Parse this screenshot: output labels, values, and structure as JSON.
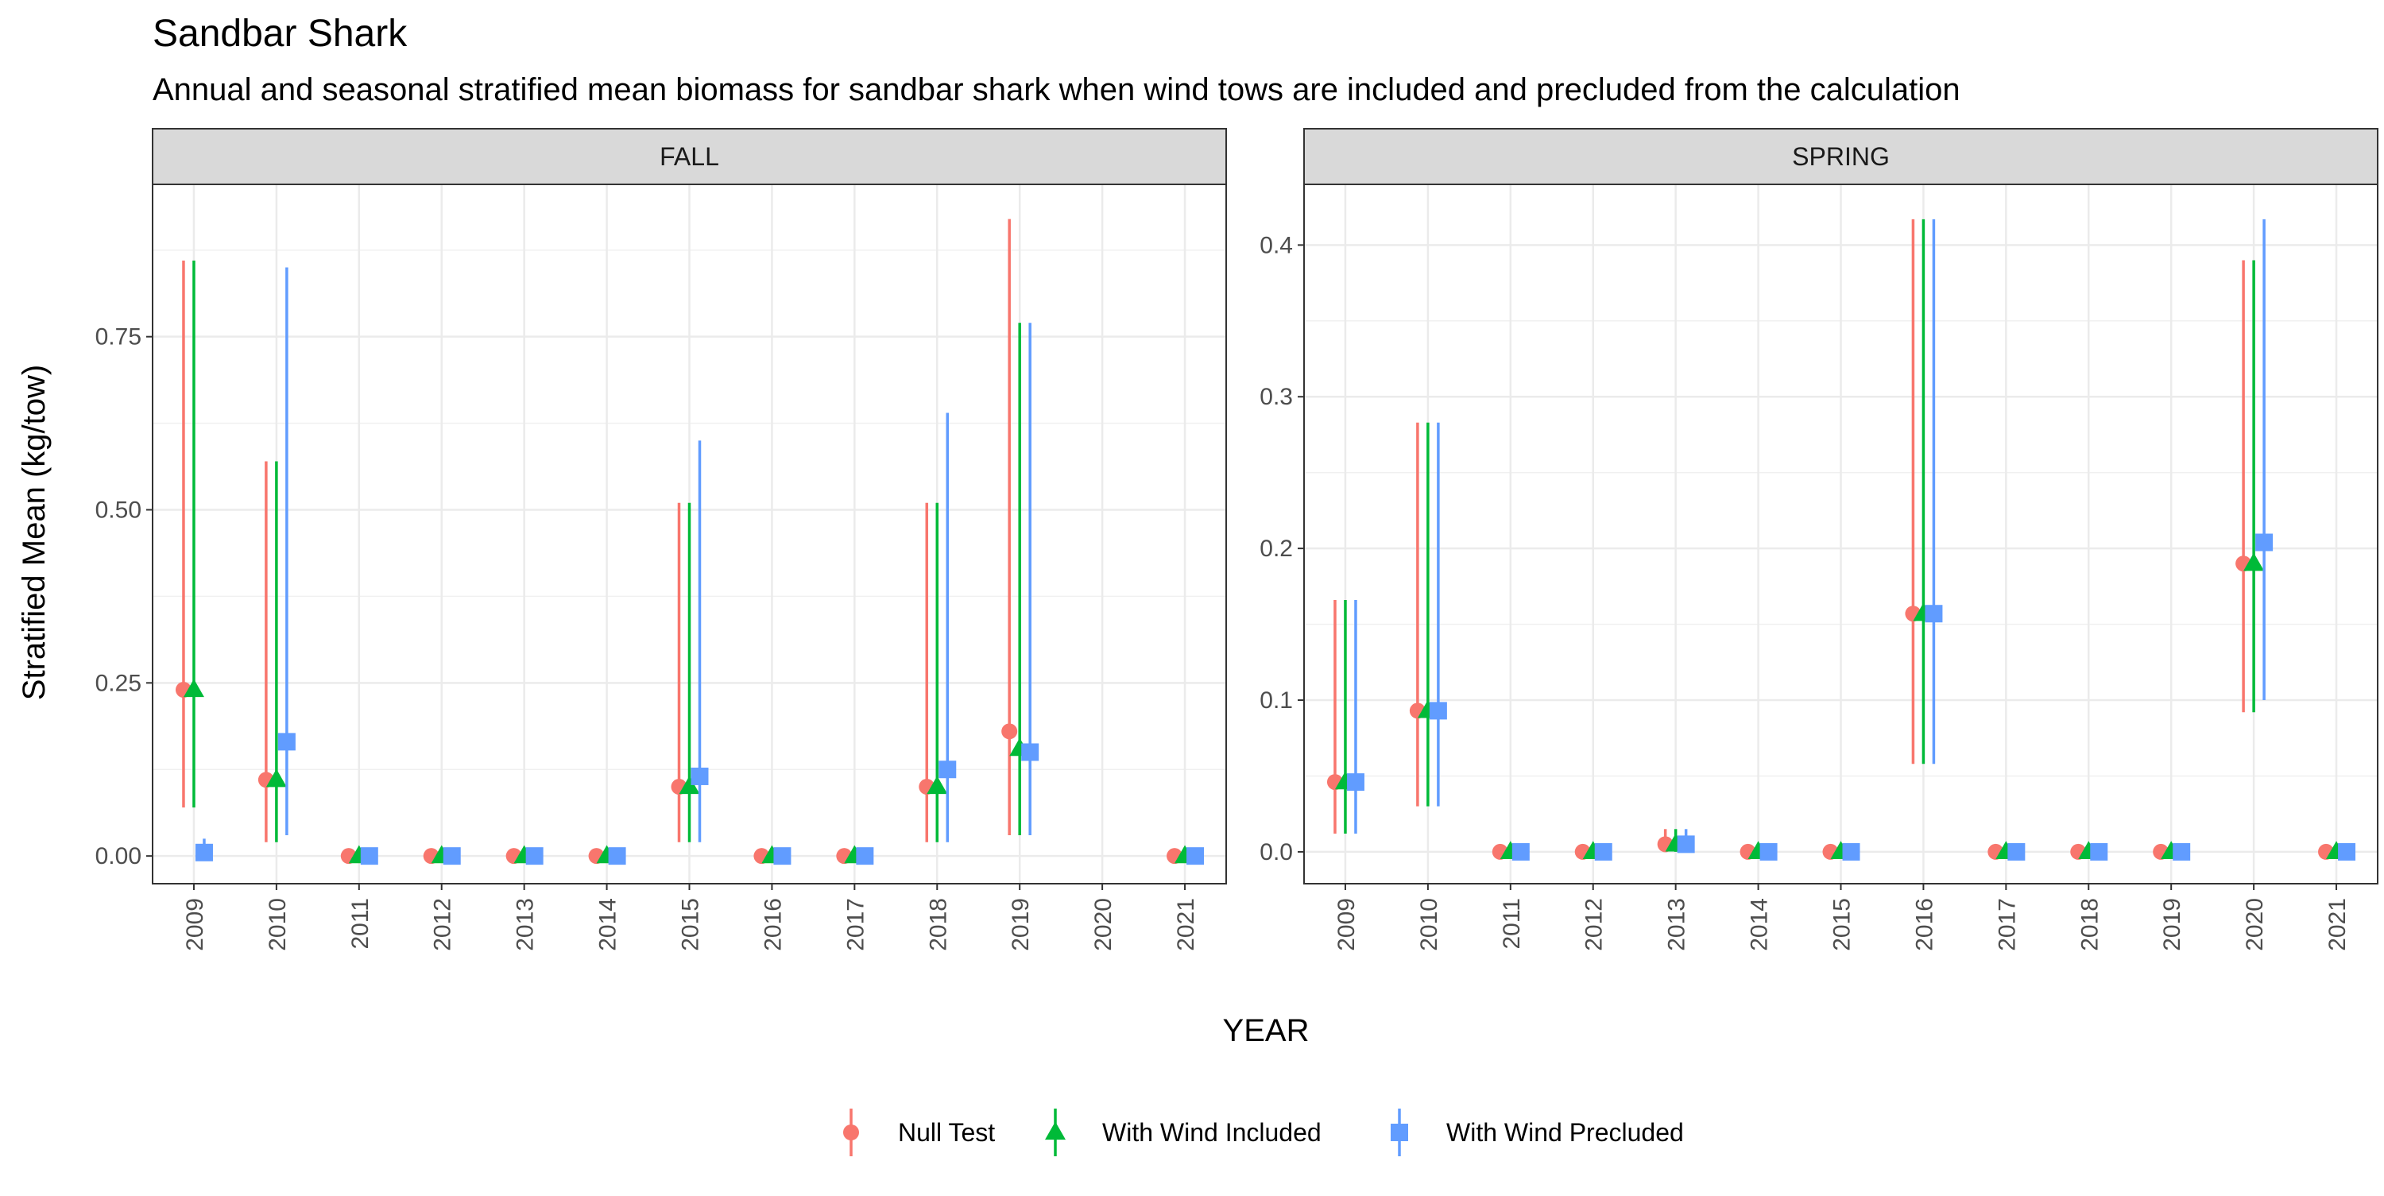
{
  "title": "Sandbar Shark",
  "subtitle": "Annual and seasonal stratified mean biomass for sandbar shark when wind tows are included and precluded from the calculation",
  "colors": {
    "null_test": "#F8766D",
    "with_wind_included": "#00BA38",
    "with_wind_precluded": "#619CFF"
  },
  "chart_data": {
    "type": "scatter",
    "title": "Sandbar Shark",
    "subtitle": "Annual and seasonal stratified mean biomass for sandbar shark when wind tows are included and precluded from the calculation",
    "xlabel": "YEAR",
    "ylabel": "Stratified Mean (kg/tow)",
    "grid": true,
    "legend_position": "bottom",
    "series_names": [
      "Null Test",
      "With Wind Included",
      "With Wind Precluded"
    ],
    "categories": [
      "2009",
      "2010",
      "2011",
      "2012",
      "2013",
      "2014",
      "2015",
      "2016",
      "2017",
      "2018",
      "2019",
      "2020",
      "2021"
    ],
    "panels": [
      {
        "name": "FALL",
        "ylim": [
          -0.04,
          0.97
        ],
        "yticks": [
          0,
          0.25,
          0.5,
          0.75
        ],
        "ytick_labels": [
          "0.00",
          "0.25",
          "0.50",
          "0.75"
        ],
        "series": [
          {
            "name": "Null Test",
            "mean": [
              0.24,
              0.11,
              0.0,
              0.0,
              0.0,
              0.0,
              0.1,
              0.0,
              0.0,
              0.1,
              0.18,
              null,
              0.0
            ],
            "lower": [
              0.07,
              0.02,
              null,
              null,
              null,
              null,
              0.02,
              null,
              null,
              0.02,
              0.03,
              null,
              null
            ],
            "upper": [
              0.86,
              0.57,
              null,
              null,
              null,
              null,
              0.51,
              null,
              null,
              0.51,
              0.92,
              null,
              null
            ]
          },
          {
            "name": "With Wind Included",
            "mean": [
              0.24,
              0.11,
              0.0,
              0.0,
              0.0,
              0.0,
              0.1,
              0.0,
              0.0,
              0.1,
              0.155,
              null,
              0.0
            ],
            "lower": [
              0.07,
              0.02,
              null,
              null,
              null,
              null,
              0.02,
              null,
              null,
              0.02,
              0.03,
              null,
              null
            ],
            "upper": [
              0.86,
              0.57,
              null,
              null,
              null,
              null,
              0.51,
              null,
              null,
              0.51,
              0.77,
              null,
              null
            ]
          },
          {
            "name": "With Wind Precluded",
            "mean": [
              0.005,
              0.165,
              0.0,
              0.0,
              0.0,
              0.0,
              0.115,
              0.0,
              0.0,
              0.125,
              0.15,
              null,
              0.0
            ],
            "lower": [
              0.0,
              0.03,
              null,
              null,
              null,
              null,
              0.02,
              null,
              null,
              0.02,
              0.03,
              null,
              null
            ],
            "upper": [
              0.025,
              0.85,
              null,
              null,
              null,
              null,
              0.6,
              null,
              null,
              0.64,
              0.77,
              null,
              null
            ]
          }
        ]
      },
      {
        "name": "SPRING",
        "ylim": [
          -0.021,
          0.44
        ],
        "yticks": [
          0,
          0.1,
          0.2,
          0.3,
          0.4
        ],
        "ytick_labels": [
          "0.0",
          "0.1",
          "0.2",
          "0.3",
          "0.4"
        ],
        "series": [
          {
            "name": "Null Test",
            "mean": [
              0.046,
              0.093,
              0.0,
              0.0,
              0.005,
              0.0,
              0.0,
              0.157,
              0.0,
              0.0,
              0.0,
              0.19,
              0.0
            ],
            "lower": [
              0.012,
              0.03,
              null,
              null,
              0.0,
              null,
              null,
              0.058,
              null,
              null,
              null,
              0.092,
              null
            ],
            "upper": [
              0.166,
              0.283,
              null,
              null,
              0.015,
              null,
              null,
              0.417,
              null,
              null,
              null,
              0.39,
              null
            ]
          },
          {
            "name": "With Wind Included",
            "mean": [
              0.046,
              0.093,
              0.0,
              0.0,
              0.005,
              0.0,
              0.0,
              0.157,
              0.0,
              0.0,
              0.0,
              0.19,
              0.0
            ],
            "lower": [
              0.012,
              0.03,
              null,
              null,
              0.0,
              null,
              null,
              0.058,
              null,
              null,
              null,
              0.092,
              null
            ],
            "upper": [
              0.166,
              0.283,
              null,
              null,
              0.015,
              null,
              null,
              0.417,
              null,
              null,
              null,
              0.39,
              null
            ]
          },
          {
            "name": "With Wind Precluded",
            "mean": [
              0.046,
              0.093,
              0.0,
              0.0,
              0.005,
              0.0,
              0.0,
              0.157,
              0.0,
              0.0,
              0.0,
              0.204,
              0.0
            ],
            "lower": [
              0.012,
              0.03,
              null,
              null,
              0.0,
              null,
              null,
              0.058,
              null,
              null,
              null,
              0.1,
              null
            ],
            "upper": [
              0.166,
              0.283,
              null,
              null,
              0.015,
              null,
              null,
              0.417,
              null,
              null,
              null,
              0.417,
              null
            ]
          }
        ]
      }
    ]
  }
}
